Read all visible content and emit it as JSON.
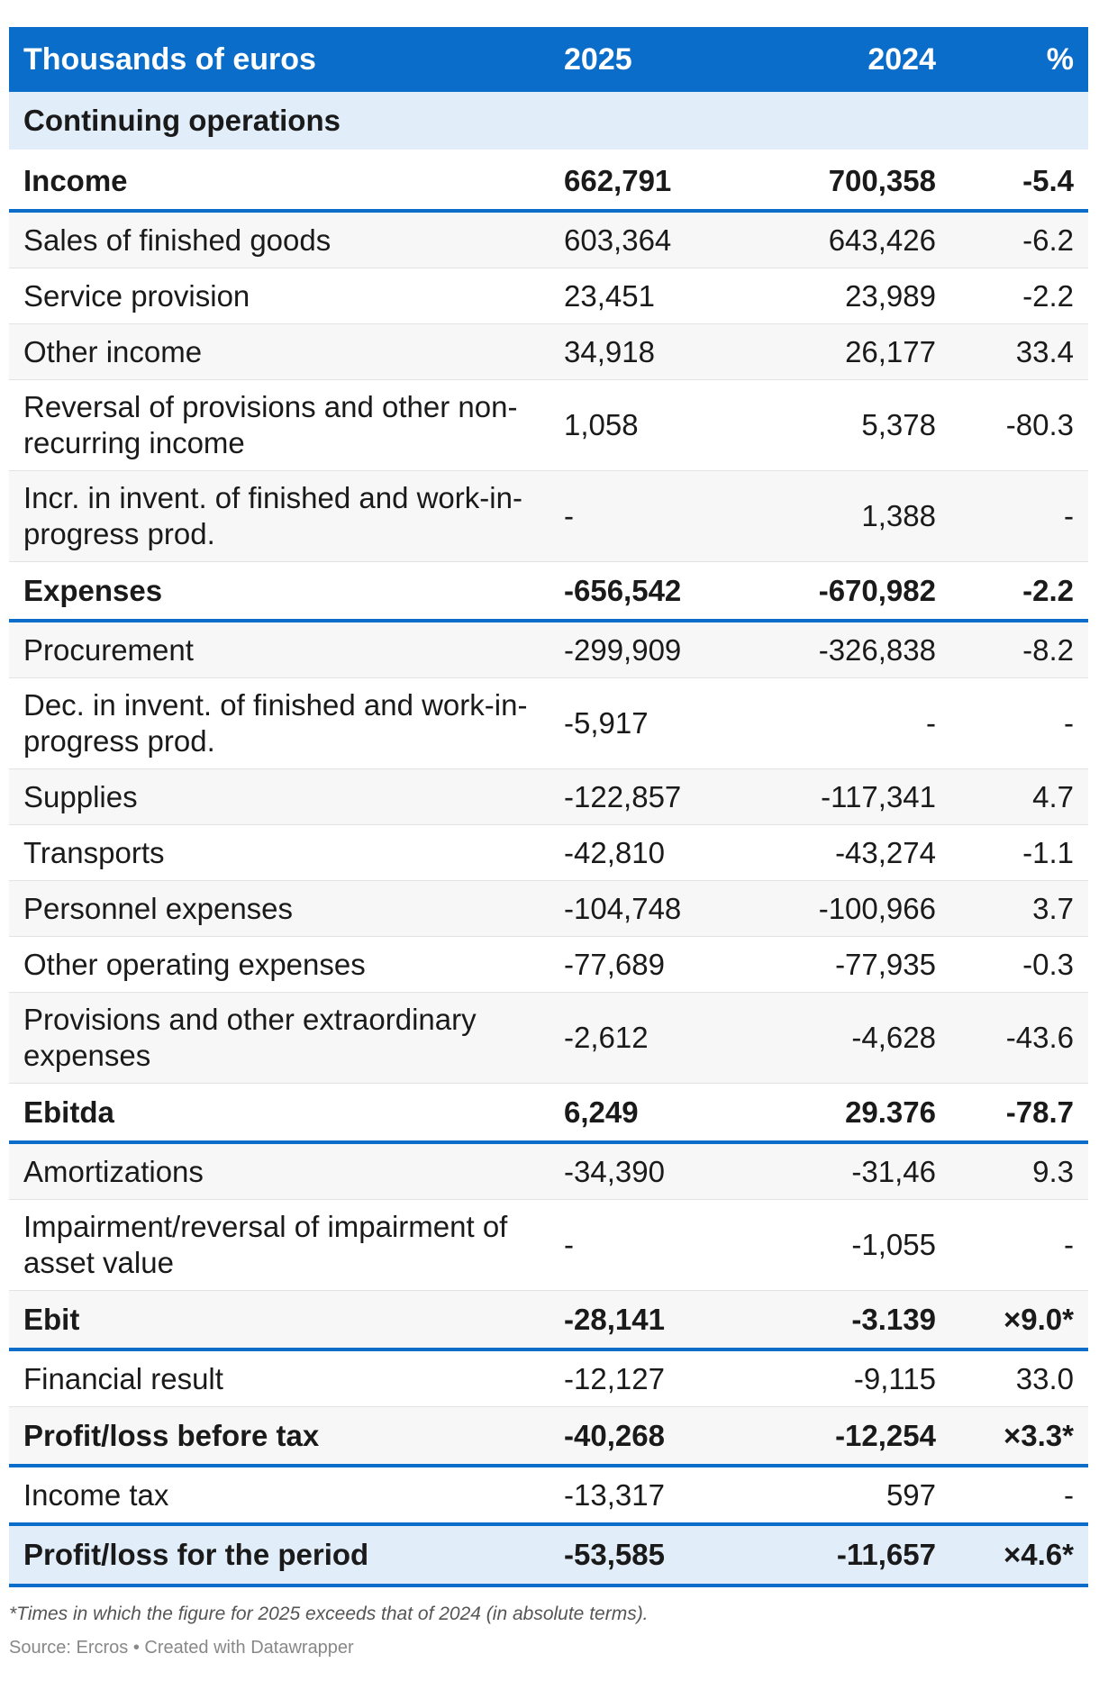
{
  "table": {
    "headers": [
      "Thousands of euros",
      "2025",
      "2024",
      "%"
    ],
    "rows": [
      {
        "type": "section",
        "label": "Continuing operations",
        "v2025": "",
        "v2024": "",
        "pct": ""
      },
      {
        "type": "bold",
        "label": "Income",
        "v2025": "662,791",
        "v2024": "700,358",
        "pct": "-5.4"
      },
      {
        "type": "normal",
        "label": "Sales of finished goods",
        "v2025": "603,364",
        "v2024": "643,426",
        "pct": "-6.2"
      },
      {
        "type": "normal",
        "label": "Service provision",
        "v2025": "23,451",
        "v2024": "23,989",
        "pct": "-2.2"
      },
      {
        "type": "normal",
        "label": "Other income",
        "v2025": "34,918",
        "v2024": "26,177",
        "pct": "33.4"
      },
      {
        "type": "tall",
        "label": "Reversal of provisions and other non-recurring income",
        "v2025": "1,058",
        "v2024": "5,378",
        "pct": "-80.3"
      },
      {
        "type": "tall",
        "label": "Incr. in invent. of finished and work-in-progress prod.",
        "v2025": "-",
        "v2024": "1,388",
        "pct": "-"
      },
      {
        "type": "bold",
        "label": "Expenses",
        "v2025": "-656,542",
        "v2024": "-670,982",
        "pct": "-2.2"
      },
      {
        "type": "normal",
        "label": "Procurement",
        "v2025": "-299,909",
        "v2024": "-326,838",
        "pct": "-8.2"
      },
      {
        "type": "tall",
        "label": "Dec. in invent. of finished and work-in-progress prod.",
        "v2025": "-5,917",
        "v2024": "-",
        "pct": "-"
      },
      {
        "type": "normal",
        "label": "Supplies",
        "v2025": "-122,857",
        "v2024": "-117,341",
        "pct": "4.7"
      },
      {
        "type": "normal",
        "label": "Transports",
        "v2025": "-42,810",
        "v2024": "-43,274",
        "pct": "-1.1"
      },
      {
        "type": "normal",
        "label": "Personnel expenses",
        "v2025": "-104,748",
        "v2024": "-100,966",
        "pct": "3.7"
      },
      {
        "type": "normal",
        "label": "Other operating expenses",
        "v2025": "-77,689",
        "v2024": "-77,935",
        "pct": "-0.3"
      },
      {
        "type": "tall",
        "label": "Provisions and other extraordinary expenses",
        "v2025": "-2,612",
        "v2024": "-4,628",
        "pct": "-43.6"
      },
      {
        "type": "bold",
        "label": "Ebitda",
        "v2025": "6,249",
        "v2024": "29.376",
        "pct": "-78.7"
      },
      {
        "type": "normal",
        "label": "Amortizations",
        "v2025": "-34,390",
        "v2024": "-31,46",
        "pct": "9.3"
      },
      {
        "type": "tall",
        "label": "Impairment/reversal of impairment of asset value",
        "v2025": "-",
        "v2024": "-1,055",
        "pct": "-"
      },
      {
        "type": "bold",
        "label": "Ebit",
        "v2025": "-28,141",
        "v2024": "-3.139",
        "pct": "×9.0*"
      },
      {
        "type": "normal",
        "label": "Financial result",
        "v2025": "-12,127",
        "v2024": "-9,115",
        "pct": "33.0"
      },
      {
        "type": "bold",
        "label": "Profit/loss before tax",
        "v2025": "-40,268",
        "v2024": "-12,254",
        "pct": "×3.3*"
      },
      {
        "type": "normal",
        "label": "Income tax",
        "v2025": "-13,317",
        "v2024": "597",
        "pct": "-"
      },
      {
        "type": "final",
        "label": "Profit/loss for the period",
        "v2025": "-53,585",
        "v2024": "-11,657",
        "pct": "×4.6*"
      }
    ]
  },
  "footnote": "*Times in which the figure for 2025 exceeds that of 2024 (in absolute terms).",
  "source": "Source: Ercros • Created with Datawrapper"
}
